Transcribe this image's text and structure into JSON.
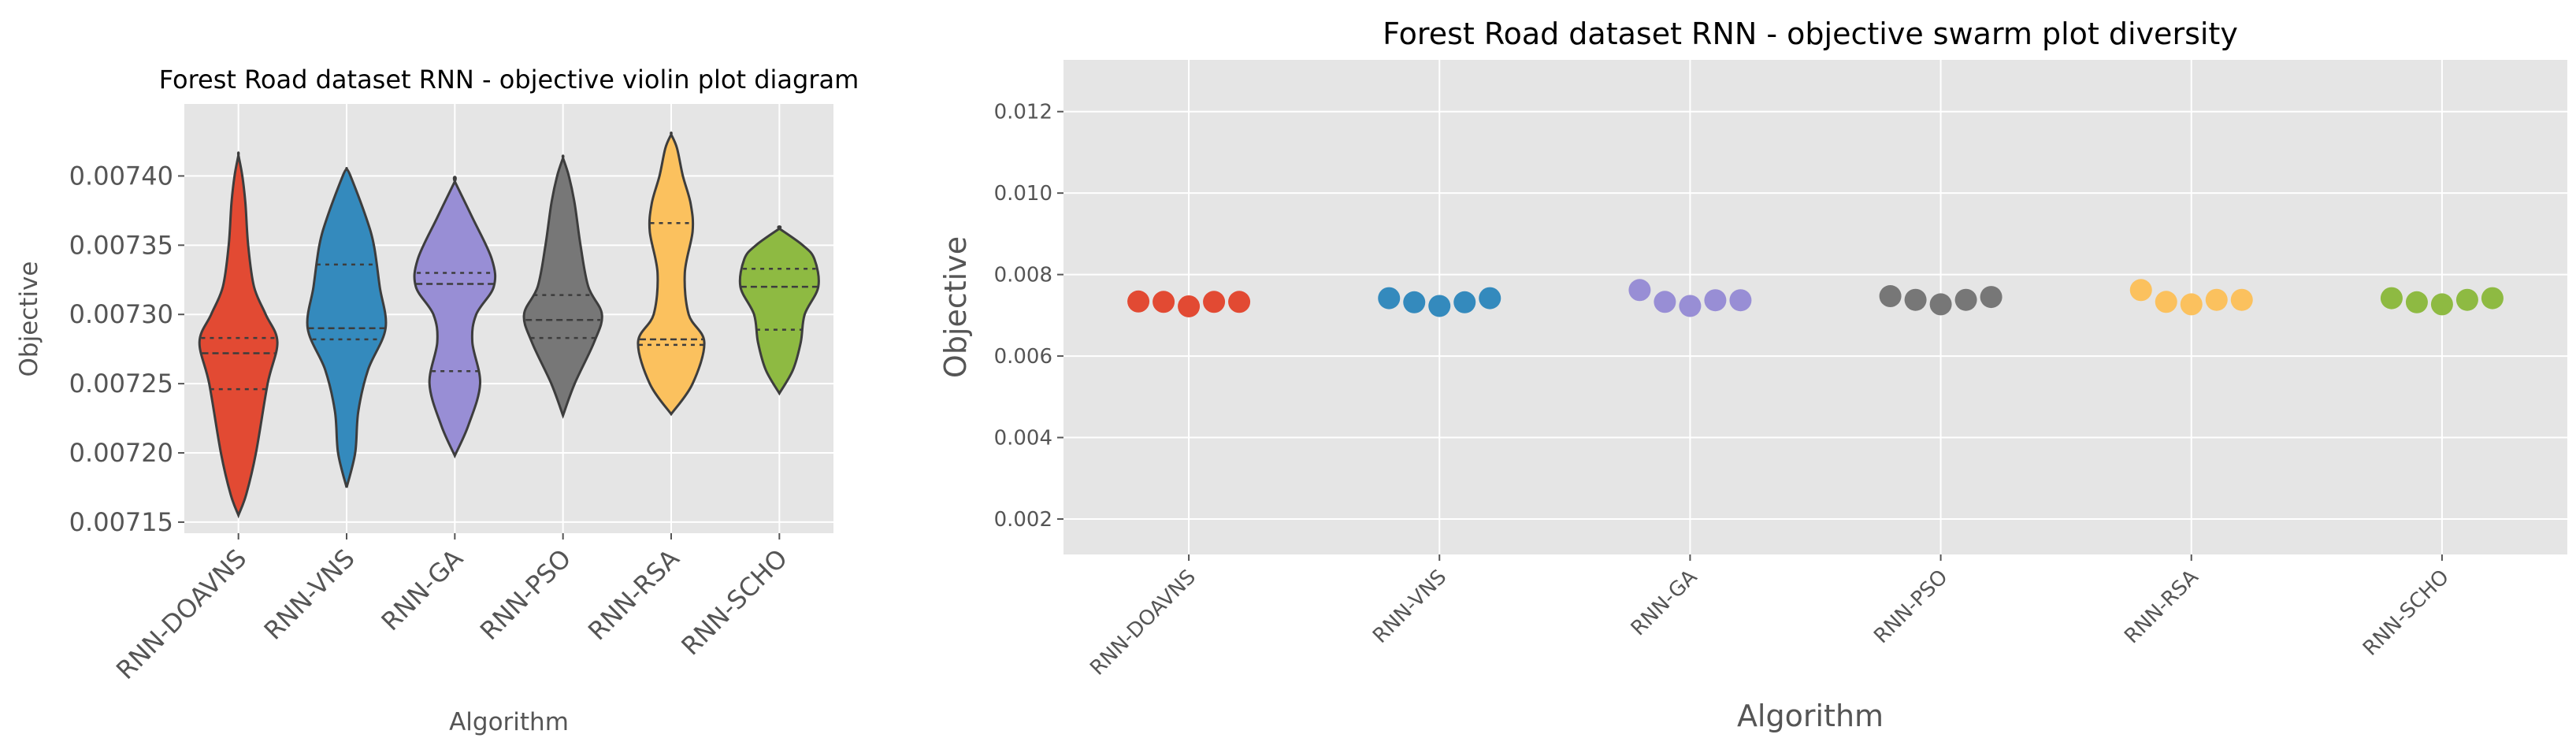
{
  "chart_data": [
    {
      "type": "violin",
      "title": "Forest Road dataset RNN -  objective violin plot diagram",
      "xlabel": "Algorithm",
      "ylabel": "Objective",
      "categories": [
        "RNN-DOAVNS",
        "RNN-VNS",
        "RNN-GA",
        "RNN-PSO",
        "RNN-RSA",
        "RNN-SCHO"
      ],
      "ylim": [
        0.007142,
        0.007452
      ],
      "yticks": [
        "0.00715",
        "0.00720",
        "0.00725",
        "0.00730",
        "0.00735",
        "0.00740"
      ],
      "ytick_values": [
        0.00715,
        0.0072,
        0.00725,
        0.0073,
        0.00735,
        0.0074
      ],
      "grid": true,
      "colors": [
        "#e24a33",
        "#348abd",
        "#988ed5",
        "#777777",
        "#fbc15e",
        "#8eba42"
      ],
      "violins": [
        {
          "category": "RNN-DOAVNS",
          "min": 0.007155,
          "max": 0.007415,
          "q1": 0.007246,
          "median": 0.007272,
          "q3": 0.007283,
          "profile": [
            [
              0.007155,
              0.0
            ],
            [
              0.00717,
              0.2
            ],
            [
              0.0072,
              0.45
            ],
            [
              0.00725,
              0.75
            ],
            [
              0.00728,
              1.0
            ],
            [
              0.0073,
              0.7
            ],
            [
              0.00732,
              0.4
            ],
            [
              0.00735,
              0.25
            ],
            [
              0.00738,
              0.18
            ],
            [
              0.0074,
              0.1
            ],
            [
              0.007415,
              0.0
            ]
          ]
        },
        {
          "category": "RNN-VNS",
          "min": 0.007175,
          "max": 0.007405,
          "q1": 0.007282,
          "median": 0.00729,
          "q3": 0.007336,
          "profile": [
            [
              0.007175,
              0.0
            ],
            [
              0.0072,
              0.22
            ],
            [
              0.00723,
              0.3
            ],
            [
              0.00726,
              0.55
            ],
            [
              0.00729,
              1.0
            ],
            [
              0.00732,
              0.85
            ],
            [
              0.00735,
              0.7
            ],
            [
              0.00737,
              0.5
            ],
            [
              0.0074,
              0.1
            ],
            [
              0.007405,
              0.0
            ]
          ]
        },
        {
          "category": "RNN-GA",
          "min": 0.007198,
          "max": 0.007396,
          "q1": 0.007259,
          "median": 0.007322,
          "q3": 0.00733,
          "profile": [
            [
              0.007198,
              0.0
            ],
            [
              0.00722,
              0.35
            ],
            [
              0.00725,
              0.65
            ],
            [
              0.00728,
              0.45
            ],
            [
              0.0073,
              0.55
            ],
            [
              0.00732,
              1.0
            ],
            [
              0.00734,
              0.95
            ],
            [
              0.00737,
              0.45
            ],
            [
              0.007396,
              0.0
            ]
          ]
        },
        {
          "category": "RNN-PSO",
          "min": 0.007227,
          "max": 0.007413,
          "q1": 0.007283,
          "median": 0.007296,
          "q3": 0.007314,
          "profile": [
            [
              0.007227,
              0.0
            ],
            [
              0.00725,
              0.3
            ],
            [
              0.00728,
              0.8
            ],
            [
              0.0073,
              1.0
            ],
            [
              0.00732,
              0.65
            ],
            [
              0.00735,
              0.45
            ],
            [
              0.00738,
              0.3
            ],
            [
              0.0074,
              0.15
            ],
            [
              0.007413,
              0.0
            ]
          ]
        },
        {
          "category": "RNN-RSA",
          "min": 0.007228,
          "max": 0.00743,
          "q1": 0.007278,
          "median": 0.007282,
          "q3": 0.007366,
          "profile": [
            [
              0.007228,
              0.0
            ],
            [
              0.00725,
              0.55
            ],
            [
              0.00728,
              0.85
            ],
            [
              0.0073,
              0.45
            ],
            [
              0.00733,
              0.35
            ],
            [
              0.00736,
              0.55
            ],
            [
              0.00738,
              0.5
            ],
            [
              0.0074,
              0.3
            ],
            [
              0.00742,
              0.15
            ],
            [
              0.00743,
              0.0
            ]
          ]
        },
        {
          "category": "RNN-SCHO",
          "min": 0.007243,
          "max": 0.007362,
          "q1": 0.007289,
          "median": 0.00732,
          "q3": 0.007333,
          "profile": [
            [
              0.007243,
              0.0
            ],
            [
              0.00726,
              0.35
            ],
            [
              0.00728,
              0.55
            ],
            [
              0.0073,
              0.65
            ],
            [
              0.00732,
              1.0
            ],
            [
              0.00734,
              0.9
            ],
            [
              0.00735,
              0.6
            ],
            [
              0.007362,
              0.0
            ]
          ]
        }
      ]
    },
    {
      "type": "scatter",
      "title": "Forest Road dataset RNN -  objective swarm plot diversity",
      "xlabel": "Algorithm",
      "ylabel": "Objective",
      "categories": [
        "RNN-DOAVNS",
        "RNN-VNS",
        "RNN-GA",
        "RNN-PSO",
        "RNN-RSA",
        "RNN-SCHO"
      ],
      "ylim": [
        0.00113,
        0.01327
      ],
      "yticks": [
        "0.002",
        "0.004",
        "0.006",
        "0.008",
        "0.010",
        "0.012"
      ],
      "ytick_values": [
        0.002,
        0.004,
        0.006,
        0.008,
        0.01,
        0.012
      ],
      "grid": true,
      "colors": [
        "#e24a33",
        "#348abd",
        "#988ed5",
        "#777777",
        "#fbc15e",
        "#8eba42"
      ],
      "series": [
        {
          "category": "RNN-DOAVNS",
          "values": [
            0.00734,
            0.00733,
            0.00722,
            0.00733,
            0.00733
          ]
        },
        {
          "category": "RNN-VNS",
          "values": [
            0.00742,
            0.00732,
            0.00723,
            0.00732,
            0.00742
          ]
        },
        {
          "category": "RNN-GA",
          "values": [
            0.00762,
            0.00733,
            0.00723,
            0.00737,
            0.00737
          ]
        },
        {
          "category": "RNN-PSO",
          "values": [
            0.00747,
            0.00738,
            0.00727,
            0.00738,
            0.00745
          ]
        },
        {
          "category": "RNN-RSA",
          "values": [
            0.00762,
            0.00733,
            0.00727,
            0.00738,
            0.00738
          ]
        },
        {
          "category": "RNN-SCHO",
          "values": [
            0.00742,
            0.00732,
            0.00727,
            0.00738,
            0.00742
          ]
        }
      ]
    }
  ]
}
